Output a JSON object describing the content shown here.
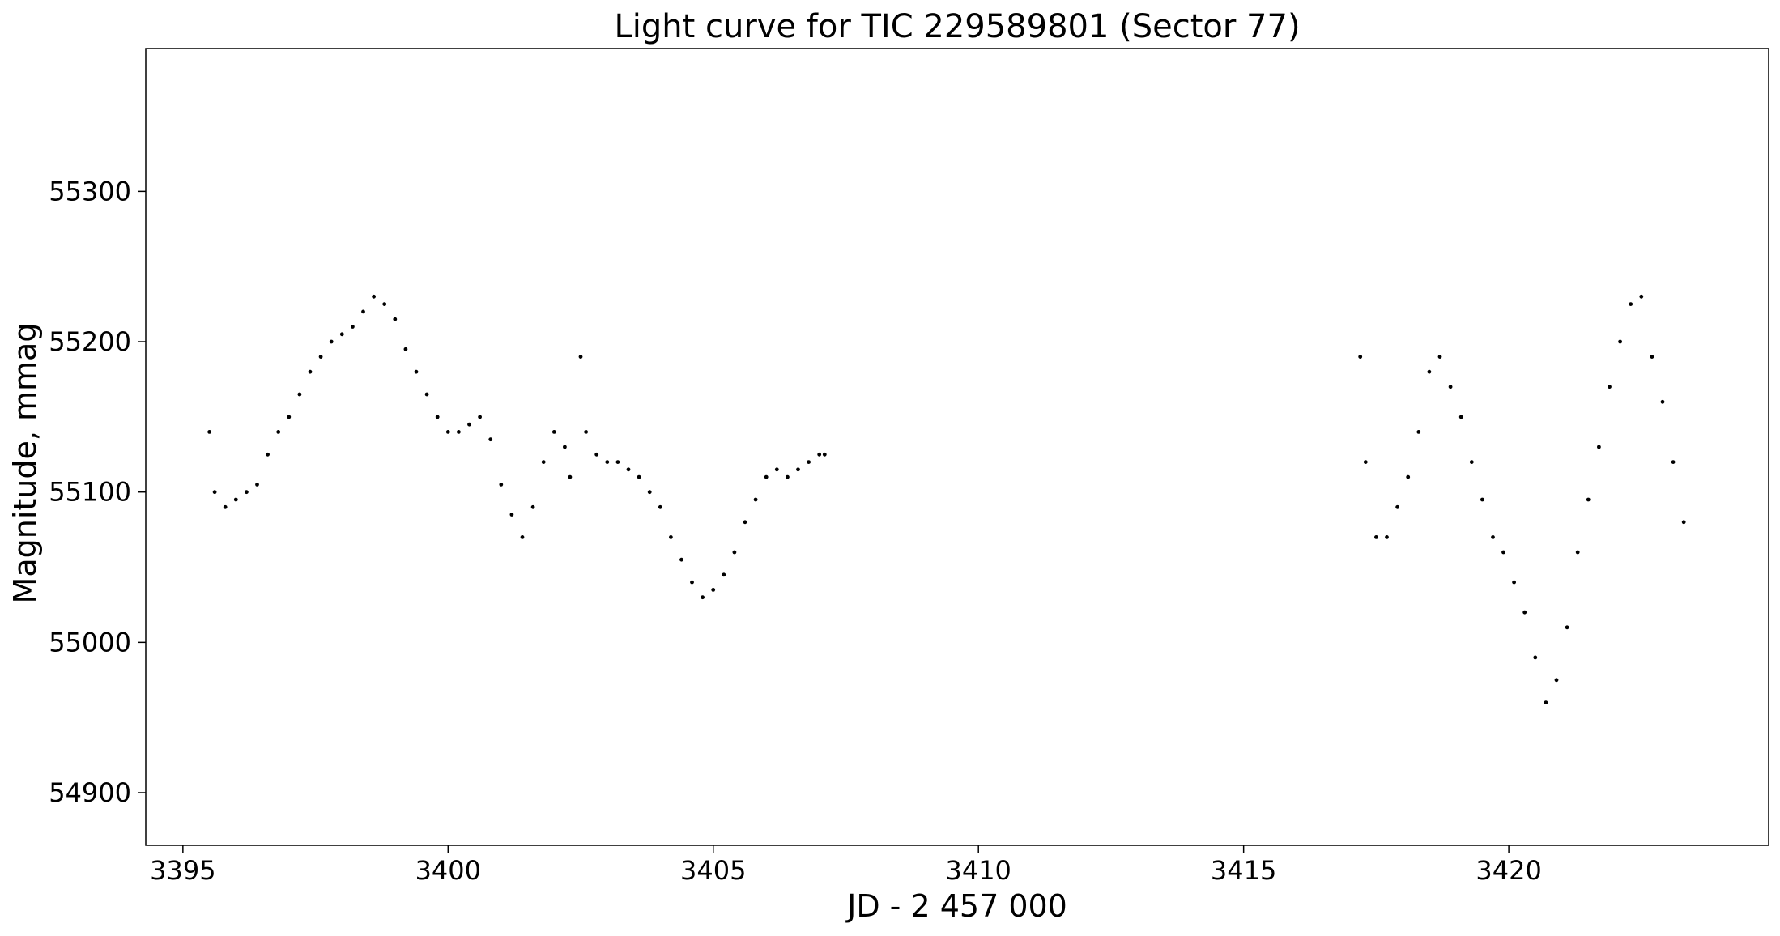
{
  "chart_data": {
    "type": "scatter",
    "title": "Light curve for TIC 229589801 (Sector 77)",
    "xlabel": "JD - 2 457 000",
    "ylabel": "Magnitude, mmag",
    "xlim": [
      3394.3,
      3424.9
    ],
    "ylim": [
      54865,
      55395
    ],
    "xticks": [
      3395,
      3400,
      3405,
      3410,
      3415,
      3420
    ],
    "yticks": [
      54900,
      55000,
      55100,
      55200,
      55300
    ],
    "grid": false,
    "legend": "none",
    "marker_color": "#000000",
    "series": [
      {
        "x": [
          3395.5,
          3395.6,
          3395.8,
          3396.0,
          3396.2,
          3396.4,
          3396.6,
          3396.8,
          3397.0,
          3397.2,
          3397.4,
          3397.6,
          3397.8,
          3398.0,
          3398.2,
          3398.4,
          3398.6,
          3398.8,
          3399.0,
          3399.2,
          3399.4,
          3399.6,
          3399.8,
          3400.0,
          3400.2,
          3400.4,
          3400.6,
          3400.8,
          3401.0,
          3401.2,
          3401.4,
          3401.6,
          3401.8,
          3402.0,
          3402.2,
          3402.3,
          3402.5,
          3402.6,
          3402.8,
          3403.0,
          3403.2,
          3403.4,
          3403.6,
          3403.8,
          3404.0,
          3404.2,
          3404.4,
          3404.6,
          3404.8,
          3405.0,
          3405.2,
          3405.4,
          3405.6,
          3405.8,
          3406.0,
          3406.2,
          3406.4,
          3406.6,
          3406.8,
          3407.0,
          3407.1,
          3417.2,
          3417.3,
          3417.5,
          3417.7,
          3417.9,
          3418.1,
          3418.3,
          3418.5,
          3418.7,
          3418.9,
          3419.1,
          3419.3,
          3419.5,
          3419.7,
          3419.9,
          3420.1,
          3420.3,
          3420.5,
          3420.7,
          3420.9,
          3421.1,
          3421.3,
          3421.5,
          3421.7,
          3421.9,
          3422.1,
          3422.3,
          3422.5,
          3422.7,
          3422.9,
          3423.1,
          3423.3
        ],
        "y": [
          55140,
          55100,
          55090,
          55095,
          55100,
          55105,
          55125,
          55140,
          55150,
          55165,
          55180,
          55190,
          55200,
          55205,
          55210,
          55220,
          55230,
          55225,
          55215,
          55195,
          55180,
          55165,
          55150,
          55140,
          55140,
          55145,
          55150,
          55135,
          55105,
          55085,
          55070,
          55090,
          55120,
          55140,
          55130,
          55110,
          55190,
          55140,
          55125,
          55120,
          55120,
          55115,
          55110,
          55100,
          55090,
          55070,
          55055,
          55040,
          55030,
          55035,
          55045,
          55060,
          55080,
          55095,
          55110,
          55115,
          55110,
          55115,
          55120,
          55125,
          55125,
          55190,
          55120,
          55070,
          55070,
          55090,
          55110,
          55140,
          55180,
          55190,
          55170,
          55150,
          55120,
          55095,
          55070,
          55060,
          55040,
          55020,
          54990,
          54960,
          54975,
          55010,
          55060,
          55095,
          55130,
          55170,
          55200,
          55225,
          55230,
          55190,
          55160,
          55120,
          55080
        ]
      }
    ]
  }
}
